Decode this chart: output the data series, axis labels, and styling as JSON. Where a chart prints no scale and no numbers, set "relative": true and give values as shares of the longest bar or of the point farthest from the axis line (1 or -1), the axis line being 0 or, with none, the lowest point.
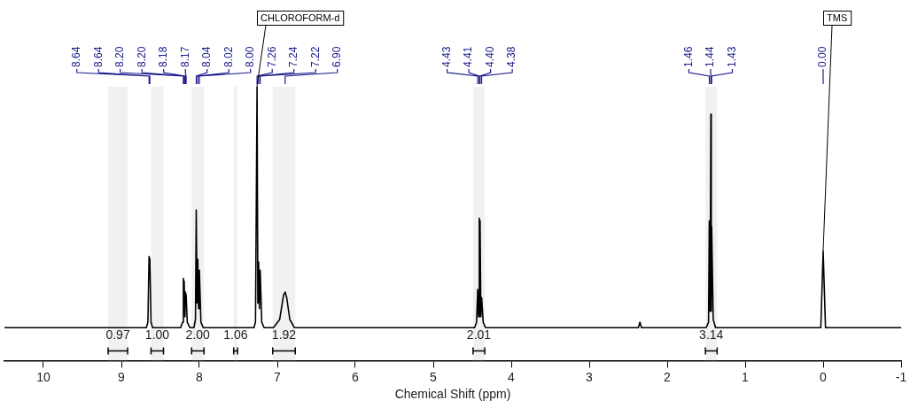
{
  "chart_data": {
    "type": "line",
    "relative": true,
    "xlabel": "Chemical Shift (ppm)",
    "xlim": [
      10.5,
      -1
    ],
    "xticks": [
      10,
      9,
      8,
      7,
      6,
      5,
      4,
      3,
      2,
      1,
      0,
      -1
    ],
    "grid": false,
    "legend": false,
    "marker": "none",
    "line_style": "solid",
    "series": [
      {
        "color": "#000000",
        "x": [
          10.5,
          8.68,
          8.66,
          8.645,
          8.635,
          8.62,
          8.6,
          8.24,
          8.215,
          8.205,
          8.2,
          8.195,
          8.185,
          8.18,
          8.17,
          8.155,
          8.12,
          8.07,
          8.05,
          8.04,
          8.03,
          8.02,
          8.01,
          8.0,
          7.98,
          7.95,
          7.3,
          7.28,
          7.26,
          7.25,
          7.24,
          7.23,
          7.22,
          7.2,
          7.17,
          7.05,
          6.97,
          6.92,
          6.9,
          6.88,
          6.84,
          6.78,
          4.47,
          4.445,
          4.43,
          4.42,
          4.41,
          4.405,
          4.4,
          4.39,
          4.38,
          4.36,
          4.33,
          2.37,
          2.35,
          2.33,
          1.5,
          1.47,
          1.46,
          1.45,
          1.44,
          1.435,
          1.43,
          1.41,
          1.38,
          0.03,
          0.0,
          -0.03,
          -1
        ],
        "values": [
          0.12,
          0.12,
          0.14,
          0.38,
          0.37,
          0.14,
          0.12,
          0.12,
          0.14,
          0.3,
          0.18,
          0.29,
          0.16,
          0.25,
          0.24,
          0.14,
          0.12,
          0.12,
          0.15,
          0.55,
          0.21,
          0.37,
          0.19,
          0.33,
          0.14,
          0.12,
          0.12,
          0.14,
          1.0,
          0.21,
          0.36,
          0.19,
          0.33,
          0.14,
          0.12,
          0.12,
          0.15,
          0.24,
          0.25,
          0.23,
          0.15,
          0.12,
          0.12,
          0.14,
          0.26,
          0.16,
          0.52,
          0.17,
          0.51,
          0.16,
          0.23,
          0.14,
          0.12,
          0.12,
          0.14,
          0.12,
          0.12,
          0.14,
          0.51,
          0.18,
          0.9,
          0.18,
          0.49,
          0.15,
          0.12,
          0.12,
          0.4,
          0.12,
          0.12
        ]
      }
    ],
    "annotations": [
      {
        "text": "8.64",
        "x": 8.645
      },
      {
        "text": "8.64",
        "x": 8.635
      },
      {
        "text": "8.20",
        "x": 8.205
      },
      {
        "text": "8.20",
        "x": 8.195
      },
      {
        "text": "8.18",
        "x": 8.18
      },
      {
        "text": "8.17",
        "x": 8.17
      },
      {
        "text": "8.04",
        "x": 8.04
      },
      {
        "text": "8.02",
        "x": 8.02
      },
      {
        "text": "8.00",
        "x": 8.0
      },
      {
        "text": "7.26",
        "x": 7.26
      },
      {
        "text": "7.24",
        "x": 7.24
      },
      {
        "text": "7.22",
        "x": 7.22
      },
      {
        "text": "6.90",
        "x": 6.9
      },
      {
        "text": "4.43",
        "x": 4.43
      },
      {
        "text": "4.41",
        "x": 4.41
      },
      {
        "text": "4.40",
        "x": 4.4
      },
      {
        "text": "4.38",
        "x": 4.38
      },
      {
        "text": "1.46",
        "x": 1.46
      },
      {
        "text": "1.44",
        "x": 1.44
      },
      {
        "text": "1.43",
        "x": 1.43
      },
      {
        "text": "0.00",
        "x": 0.0
      },
      {
        "text": "CHLOROFORM-d",
        "x": 7.26,
        "y": 1.0
      },
      {
        "text": "TMS",
        "x": 0.0,
        "y": 0.4
      }
    ],
    "bands": [
      {
        "axis": "x",
        "from": 9.17,
        "to": 8.92,
        "label": "0.97"
      },
      {
        "axis": "x",
        "from": 8.62,
        "to": 8.46,
        "label": "1.00"
      },
      {
        "axis": "x",
        "from": 8.1,
        "to": 7.94,
        "label": "2.00"
      },
      {
        "axis": "x",
        "from": 7.56,
        "to": 7.51,
        "label": "1.06"
      },
      {
        "axis": "x",
        "from": 7.06,
        "to": 6.77,
        "label": "1.92"
      },
      {
        "axis": "x",
        "from": 4.49,
        "to": 4.34,
        "label": "2.01"
      },
      {
        "axis": "x",
        "from": 1.51,
        "to": 1.36,
        "label": "3.14"
      }
    ]
  }
}
